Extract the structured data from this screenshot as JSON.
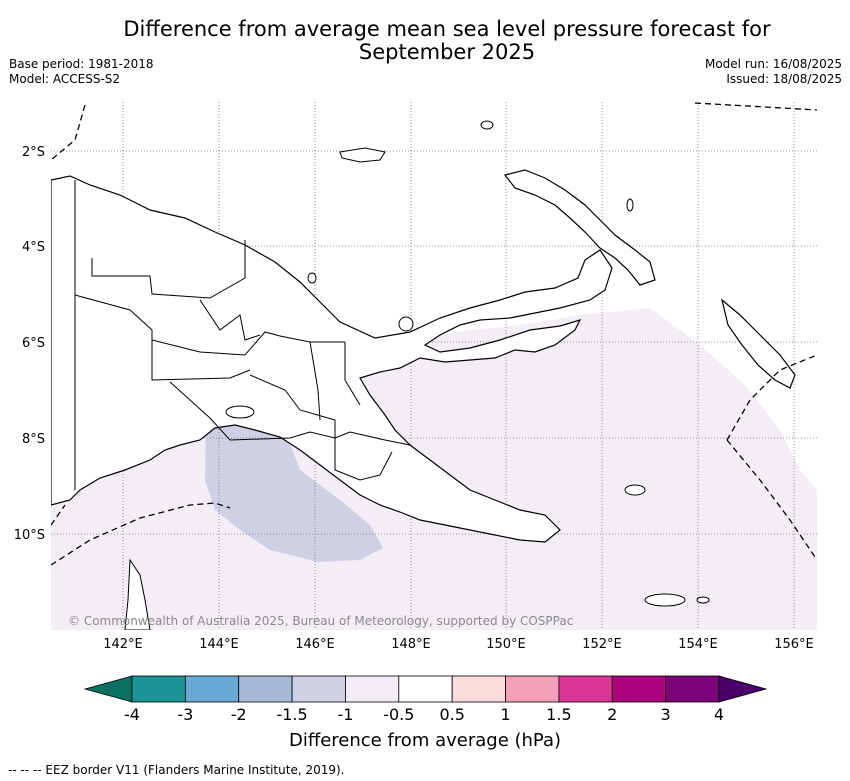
{
  "title_line1": "Difference from average mean sea level pressure forecast for",
  "title_line2": "September 2025",
  "base_period": "Base period: 1981-2018",
  "model": "Model: ACCESS-S2",
  "model_run": "Model run: 16/08/2025",
  "issued": "Issued: 18/08/2025",
  "copyright": "© Commonwealth of Australia 2025, Bureau of Meteorology, supported by COSPPac",
  "lat_labels": [
    "2°S",
    "4°S",
    "6°S",
    "8°S",
    "10°S"
  ],
  "lon_labels": [
    "142°E",
    "144°E",
    "146°E",
    "148°E",
    "150°E",
    "152°E",
    "154°E",
    "156°E"
  ],
  "colorbar": {
    "title": "Difference from average (hPa)",
    "labels": [
      "-4",
      "-3",
      "-2",
      "-1.5",
      "-1",
      "-0.5",
      "0.5",
      "1",
      "1.5",
      "2",
      "3",
      "4"
    ],
    "colors": [
      "#0b6f62",
      "#1a9399",
      "#67aad5",
      "#a6bad8",
      "#cfd0e6",
      "#f3eef6",
      "#ffffff",
      "#fddcdf",
      "#f6a0b8",
      "#dd3497",
      "#ae017e",
      "#7a0177",
      "#49006a"
    ]
  },
  "footnote": "--  --  -- EEZ border V11 (Flanders Marine Institute, 2019).",
  "colors": {
    "light_anomaly": "#f3eef6",
    "moderate_anomaly": "#cfd0e6"
  }
}
